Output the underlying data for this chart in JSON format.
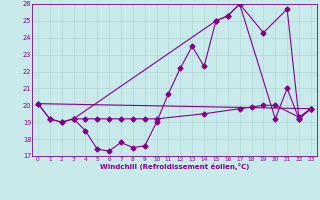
{
  "xlabel": "Windchill (Refroidissement éolien,°C)",
  "background_color": "#c8eaea",
  "grid_color": "#b0d8d8",
  "line_color": "#880088",
  "xlim": [
    -0.5,
    23.5
  ],
  "ylim": [
    17,
    26
  ],
  "xticks": [
    0,
    1,
    2,
    3,
    4,
    5,
    6,
    7,
    8,
    9,
    10,
    11,
    12,
    13,
    14,
    15,
    16,
    17,
    18,
    19,
    20,
    21,
    22,
    23
  ],
  "yticks": [
    17,
    18,
    19,
    20,
    21,
    22,
    23,
    24,
    25,
    26
  ],
  "line1_jagged": {
    "x": [
      0,
      1,
      2,
      3,
      4,
      5,
      6,
      7,
      8,
      9,
      10,
      11,
      12,
      13,
      14,
      15,
      16,
      17,
      20,
      21,
      22,
      23
    ],
    "y": [
      20.1,
      19.2,
      19.0,
      19.2,
      18.5,
      17.4,
      17.3,
      17.8,
      17.5,
      17.6,
      19.0,
      20.7,
      22.2,
      23.5,
      22.3,
      25.0,
      25.3,
      26.0,
      19.2,
      21.0,
      19.2,
      19.8
    ]
  },
  "line2_flat": {
    "x": [
      0,
      1,
      2,
      3,
      4,
      5,
      6,
      7,
      8,
      9,
      10,
      14,
      17,
      18,
      19,
      20,
      22,
      23
    ],
    "y": [
      20.1,
      19.2,
      19.0,
      19.2,
      19.2,
      19.2,
      19.2,
      19.2,
      19.2,
      19.2,
      19.2,
      19.5,
      19.8,
      19.9,
      20.0,
      20.0,
      19.3,
      19.8
    ]
  },
  "line3_diagonal": {
    "x": [
      0,
      23
    ],
    "y": [
      20.1,
      19.8
    ]
  },
  "line4_triangle": {
    "x": [
      3,
      15,
      16,
      17,
      19,
      21,
      22,
      23
    ],
    "y": [
      19.2,
      25.0,
      25.3,
      26.0,
      24.3,
      25.7,
      19.2,
      19.8
    ]
  }
}
